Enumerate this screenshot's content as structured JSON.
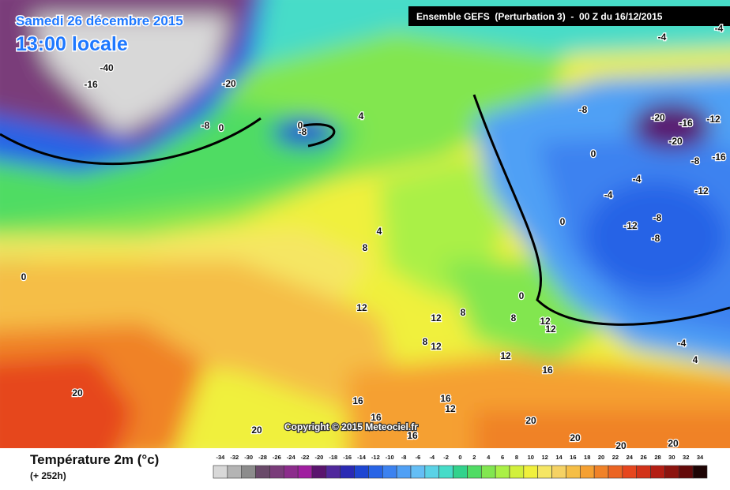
{
  "header": {
    "title": "Samedi 26 décembre 2015",
    "subtitle": "13:00 locale",
    "model": "Ensemble GEFS  (Perturbation 3)  -  00 Z du 16/12/2015",
    "copyright": "Copyright © 2015 Meteociel.fr"
  },
  "legend": {
    "title": "Température 2m (°c)",
    "lead": "(+ 252h)",
    "labels": [
      -34,
      -32,
      -30,
      -28,
      -26,
      -24,
      -22,
      -20,
      -18,
      -16,
      -14,
      -12,
      -10,
      -8,
      -6,
      -4,
      -2,
      0,
      2,
      4,
      6,
      8,
      10,
      12,
      14,
      16,
      18,
      20,
      22,
      24,
      26,
      28,
      30,
      32,
      34
    ],
    "colors": [
      "#d8d8d8",
      "#b4b4b4",
      "#8c8c8c",
      "#6a4a6a",
      "#7a3c7a",
      "#8c2c8c",
      "#a01ea0",
      "#5a146e",
      "#50289c",
      "#2a2ab4",
      "#1e46d2",
      "#2864e6",
      "#3c82f0",
      "#50a0f5",
      "#64bef5",
      "#5ad2e6",
      "#46dcc8",
      "#32d28c",
      "#50dc64",
      "#82e650",
      "#aaf046",
      "#d2f03c",
      "#f0f03c",
      "#f5e664",
      "#f5d264",
      "#f5be46",
      "#f5a032",
      "#f08228",
      "#eb6423",
      "#e6461e",
      "#d23219",
      "#b41e14",
      "#8c140f",
      "#640a0a",
      "#1e0505"
    ]
  },
  "map_labels": [
    -4,
    -4,
    -40,
    -16,
    -20,
    -8,
    0,
    4,
    0,
    -8,
    -8,
    -20,
    -16,
    -12,
    -20,
    -8,
    -16,
    -4,
    -12,
    -4,
    0,
    -8,
    -12,
    -8,
    0,
    4,
    8,
    0,
    12,
    12,
    8,
    8,
    0,
    12,
    12,
    8,
    12,
    12,
    16,
    -4,
    4,
    20,
    16,
    16,
    12,
    16,
    16,
    20,
    20,
    20,
    20,
    20
  ]
}
